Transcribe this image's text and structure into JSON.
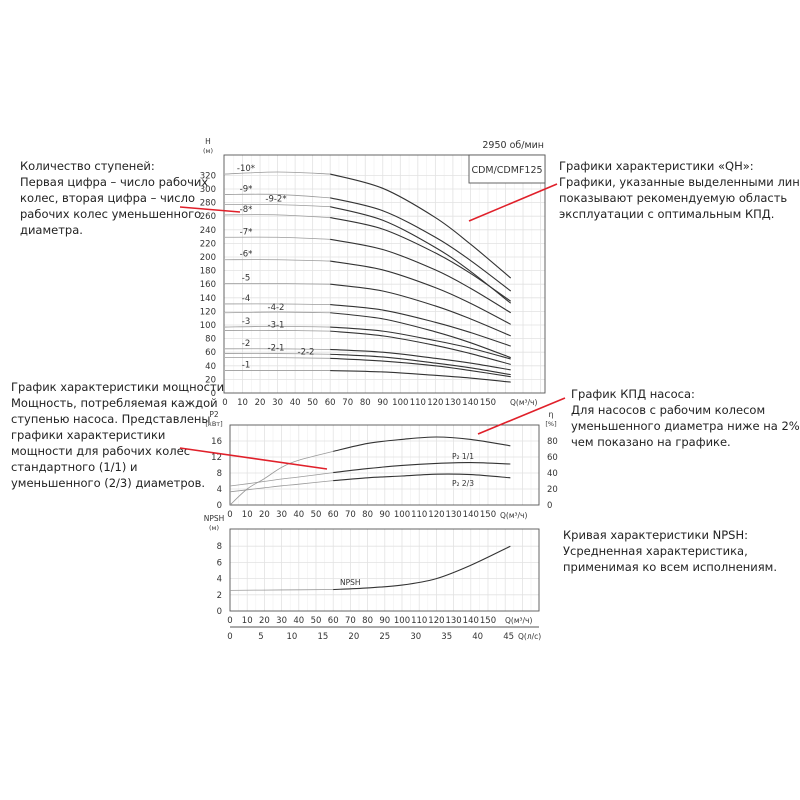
{
  "annotations": {
    "stages": [
      "Количество ступеней:",
      "Первая цифра – число рабочих",
      "колес, вторая цифра – число",
      "рабочих колес уменьшенного",
      "диаметра."
    ],
    "qh": [
      "Графики характеристики «QH»:",
      "Графики, указанные выделенными линиями,",
      "показывают рекомендуемую область",
      "эксплуатации с оптимальным КПД."
    ],
    "power": [
      "График характеристики мощности",
      "Мощность, потребляемая каждой",
      "ступенью насоса. Представлены",
      "графики характеристики",
      "мощности для рабочих колес",
      "стандартного (1/1) и",
      "уменьшенного (2/3) диаметров."
    ],
    "efficiency": [
      "График КПД насоса:",
      "Для насосов с рабочим колесом",
      "уменьшенного диаметра ниже на 2%,",
      "чем показано на графике."
    ],
    "npsh": [
      "Кривая характеристики NPSH:",
      "Усредненная характеристика,",
      "применимая ко всем исполнениям."
    ]
  },
  "colors": {
    "curve": "#333333",
    "curve_light": "#9a9a9a",
    "grid": "#e2e2e2",
    "annotation_line": "#e0202a"
  },
  "chart_data": [
    {
      "type": "line",
      "speed_label": "2950 об/мин",
      "model_label": "CDM/CDMF125",
      "ylabel": "H",
      "yunit": "(м)",
      "xlabel": "Q(м³/ч)",
      "ylim": [
        0,
        340
      ],
      "xlim": [
        0,
        180
      ],
      "yticks": [
        0,
        20,
        40,
        60,
        80,
        100,
        120,
        140,
        160,
        180,
        200,
        220,
        240,
        260,
        280,
        300,
        320
      ],
      "xticks": [
        0,
        10,
        20,
        30,
        40,
        50,
        60,
        70,
        80,
        90,
        100,
        110,
        120,
        130,
        140,
        150
      ],
      "grid": true,
      "x": [
        0,
        30,
        60,
        90,
        120,
        140,
        163
      ],
      "series": [
        {
          "name": "-10*",
          "values": [
            322,
            325,
            322,
            301,
            258,
            219,
            169
          ]
        },
        {
          "name": "-9*",
          "values": [
            292,
            292,
            287,
            268,
            229,
            195,
            150
          ]
        },
        {
          "name": "-9-2*",
          "values": [
            277,
            277,
            274,
            254,
            214,
            179,
            132
          ]
        },
        {
          "name": "-8*",
          "values": [
            262,
            262,
            258,
            241,
            206,
            176,
            135
          ]
        },
        {
          "name": "-7*",
          "values": [
            229,
            229,
            226,
            211,
            181,
            154,
            118
          ]
        },
        {
          "name": "-6*",
          "values": [
            196,
            196,
            194,
            181,
            155,
            132,
            101
          ]
        },
        {
          "name": "-5",
          "values": [
            161,
            161,
            160,
            150,
            128,
            109,
            84
          ]
        },
        {
          "name": "-4",
          "values": [
            131,
            131,
            130,
            122,
            104,
            89,
            69
          ]
        },
        {
          "name": "-4-2",
          "values": [
            118,
            119,
            118,
            109,
            90,
            74,
            52
          ]
        },
        {
          "name": "-3",
          "values": [
            97,
            98,
            97,
            91,
            77,
            66,
            50
          ]
        },
        {
          "name": "-3-1",
          "values": [
            92,
            92,
            91,
            84,
            70,
            58,
            42
          ]
        },
        {
          "name": "-2",
          "values": [
            65,
            65,
            64,
            60,
            51,
            44,
            34
          ]
        },
        {
          "name": "-2-1",
          "values": [
            58,
            58,
            57,
            53,
            44,
            37,
            27
          ]
        },
        {
          "name": "-2-2",
          "values": [
            52,
            52,
            51,
            47,
            40,
            33,
            24
          ]
        },
        {
          "name": "-1",
          "values": [
            33,
            33,
            33,
            31,
            26,
            22,
            16
          ]
        }
      ]
    },
    {
      "type": "line",
      "ylabel": "P2",
      "yunit": "[кВт]",
      "y2label": "η",
      "y2unit": "[%]",
      "xlabel": "Q(м³/ч)",
      "ylim": [
        0,
        20
      ],
      "y2lim": [
        0,
        100
      ],
      "xlim": [
        0,
        180
      ],
      "yticks": [
        0,
        4,
        8,
        12,
        16
      ],
      "y2ticks": [
        0,
        20,
        40,
        60,
        80
      ],
      "xticks": [
        0,
        10,
        20,
        30,
        40,
        50,
        60,
        70,
        80,
        90,
        100,
        110,
        120,
        130,
        140,
        150
      ],
      "grid": true,
      "x": [
        0,
        10,
        20,
        30,
        40,
        60,
        80,
        100,
        120,
        140,
        163
      ],
      "series": [
        {
          "name": "P₂ 1/1",
          "axis": "P2",
          "values": [
            4.75,
            5.3,
            5.9,
            6.5,
            7.0,
            8.1,
            9.1,
            9.9,
            10.4,
            10.6,
            10.25
          ]
        },
        {
          "name": "P₂ 2/3",
          "axis": "P2",
          "values": [
            3.3,
            3.8,
            4.3,
            4.8,
            5.2,
            6.1,
            6.8,
            7.25,
            7.7,
            7.6,
            6.8
          ]
        },
        {
          "axis": "η",
          "values": [
            0,
            20,
            33,
            47,
            56,
            67,
            77,
            82,
            85,
            82,
            74
          ]
        }
      ]
    },
    {
      "type": "line",
      "ylabel": "NPSH",
      "yunit": "(м)",
      "xlabel": "Q(м³/ч)",
      "x2label": "Q(л/с)",
      "ylim": [
        0,
        10
      ],
      "xlim": [
        0,
        180
      ],
      "yticks": [
        0,
        2,
        4,
        6,
        8
      ],
      "xticks": [
        0,
        10,
        20,
        30,
        40,
        50,
        60,
        70,
        80,
        90,
        100,
        110,
        120,
        130,
        140,
        150
      ],
      "x2ticks": [
        0,
        5,
        10,
        15,
        20,
        25,
        30,
        35,
        40,
        45
      ],
      "grid": true,
      "x": [
        0,
        30,
        60,
        80,
        100,
        120,
        140,
        163
      ],
      "series": [
        {
          "name": "NPSH",
          "values": [
            2.55,
            2.6,
            2.65,
            2.85,
            3.2,
            4.0,
            5.65,
            8.0
          ]
        }
      ]
    }
  ]
}
